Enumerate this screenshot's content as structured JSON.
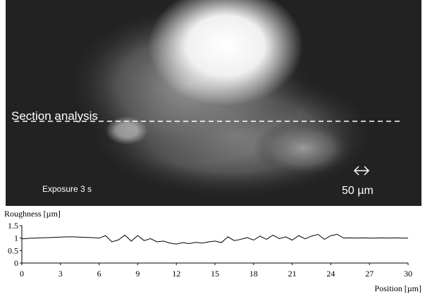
{
  "image": {
    "section_label": "Section analysis",
    "exposure": "Exposure 3 s",
    "scale_bar": "50 µm"
  },
  "chart_data": {
    "type": "line",
    "y_label": "Roughness [µm]",
    "x_label": "Position [µm]",
    "color": "#000000",
    "xlim": [
      0,
      30
    ],
    "ylim": [
      0,
      1.5
    ],
    "xticks": [
      0,
      3,
      6,
      9,
      12,
      15,
      18,
      21,
      24,
      27,
      30
    ],
    "yticks": [
      0,
      0.5,
      1,
      1.5
    ],
    "x": [
      0,
      0.5,
      1,
      1.5,
      2,
      2.5,
      3,
      3.5,
      4,
      4.5,
      5,
      5.5,
      6,
      6.5,
      7,
      7.5,
      8,
      8.5,
      9,
      9.5,
      10,
      10.5,
      11,
      11.5,
      12,
      12.5,
      13,
      13.5,
      14,
      14.5,
      15,
      15.5,
      16,
      16.5,
      17,
      17.5,
      18,
      18.5,
      19,
      19.5,
      20,
      20.5,
      21,
      21.5,
      22,
      22.5,
      23,
      23.5,
      24,
      24.5,
      25,
      25.5,
      26,
      26.5,
      27,
      27.5,
      28,
      28.5,
      29,
      29.5,
      30
    ],
    "values": [
      0.97,
      0.99,
      1.0,
      1.01,
      1.02,
      1.03,
      1.04,
      1.05,
      1.05,
      1.04,
      1.03,
      1.02,
      1.0,
      1.1,
      0.85,
      0.93,
      1.12,
      0.88,
      1.1,
      0.9,
      0.98,
      0.85,
      0.88,
      0.8,
      0.76,
      0.82,
      0.78,
      0.83,
      0.8,
      0.85,
      0.88,
      0.82,
      1.05,
      0.9,
      0.95,
      1.02,
      0.92,
      1.08,
      0.95,
      1.12,
      0.98,
      1.05,
      0.92,
      1.1,
      0.97,
      1.08,
      1.15,
      0.95,
      1.1,
      1.15,
      1.0,
      1.01,
      1.0,
      1.01,
      1.0,
      1.0,
      1.01,
      1.0,
      1.01,
      1.0,
      1.0
    ]
  }
}
